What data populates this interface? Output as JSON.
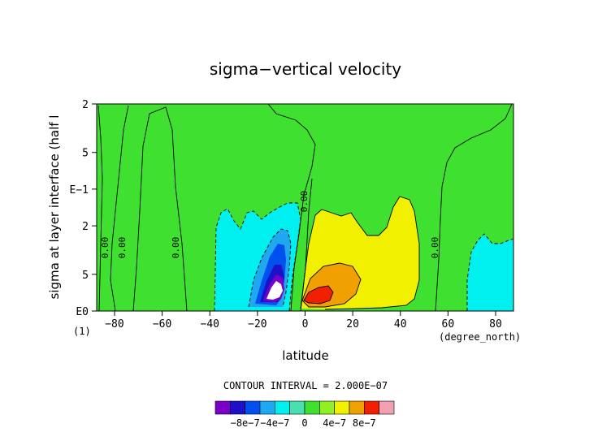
{
  "chart_data": {
    "type": "contour",
    "title": "sigma−vertical velocity",
    "xlabel": "latitude",
    "ylabel": "sigma at layer interface (half l",
    "x_units": "(degree_north)",
    "y_axis_extra_label": "(1)",
    "x_ticks": [
      "−80",
      "−60",
      "−40",
      "−20",
      "0",
      "20",
      "40",
      "60",
      "80"
    ],
    "x_tick_values": [
      -80,
      -60,
      -40,
      -20,
      0,
      20,
      40,
      60,
      80
    ],
    "xlim": [
      -87.5,
      87.5
    ],
    "y_ticks": [
      "2",
      "5",
      "E−1",
      "2",
      "5",
      "E0"
    ],
    "y_tick_values": [
      0.02,
      0.05,
      0.1,
      0.2,
      0.5,
      1.0
    ],
    "ylim": [
      1.0,
      0.02
    ],
    "y_scale": "log",
    "contour_interval_text": "CONTOUR INTERVAL = 2.000E−07",
    "contour_labels": [
      "0.00",
      "0.00",
      "0.00",
      "0.00",
      "0.00"
    ],
    "colorbar": {
      "tick_labels": [
        "−8e−7",
        "−4e−7",
        "0",
        "4e−7",
        "8e−7"
      ],
      "tick_values": [
        -8e-07,
        -4e-07,
        0,
        4e-07,
        8e-07
      ],
      "levels": [
        -1.2e-06,
        -1e-06,
        -8e-07,
        -6e-07,
        -4e-07,
        -2e-07,
        0,
        2e-07,
        4e-07,
        6e-07,
        8e-07,
        1e-06,
        1.2e-06
      ],
      "colors": [
        "#7a00c8",
        "#1c10c8",
        "#0050f0",
        "#1ea8f0",
        "#00f0f0",
        "#48e0b0",
        "#40e030",
        "#90f020",
        "#f0f000",
        "#f0a000",
        "#f02000",
        "#f0a0b0"
      ]
    }
  },
  "colors": {
    "background": "#40e030",
    "weak_negative": "#00f0f0",
    "negative_3": "#1ea8f0",
    "negative_4": "#0050f0",
    "negative_5": "#1c10c8",
    "negative_6": "#7a00c8",
    "extreme": "#ffffff",
    "weak_positive": "#f0f000",
    "positive_2": "#f0a000",
    "positive_3": "#f02000"
  }
}
